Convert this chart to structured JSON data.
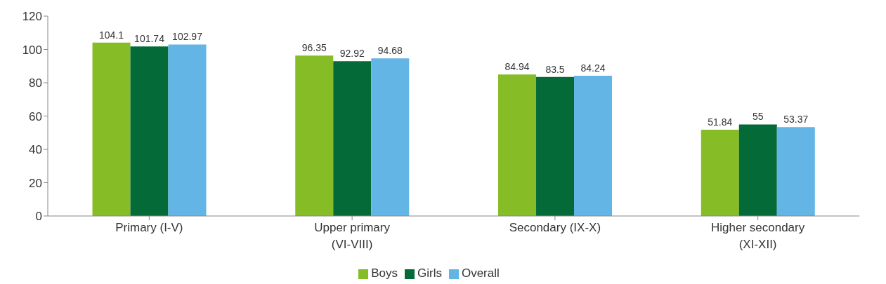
{
  "chart_data": {
    "type": "bar",
    "categories": [
      "Primary (I-V)",
      "Upper primary (VI-VIII)",
      "Secondary (IX-X)",
      "Higher secondary (XI-XII)"
    ],
    "series": [
      {
        "name": "Boys",
        "color": "#86bc25",
        "values": [
          104.1,
          96.35,
          84.94,
          51.84
        ]
      },
      {
        "name": "Girls",
        "color": "#046a38",
        "values": [
          101.74,
          92.92,
          83.5,
          55
        ]
      },
      {
        "name": "Overall",
        "color": "#62b5e5",
        "values": [
          102.97,
          94.68,
          84.24,
          53.37
        ]
      }
    ],
    "ylim": [
      0,
      120
    ],
    "yticks": [
      0,
      20,
      40,
      60,
      80,
      100,
      120
    ],
    "grid": false,
    "legend": "bottom",
    "data_labels": true
  }
}
